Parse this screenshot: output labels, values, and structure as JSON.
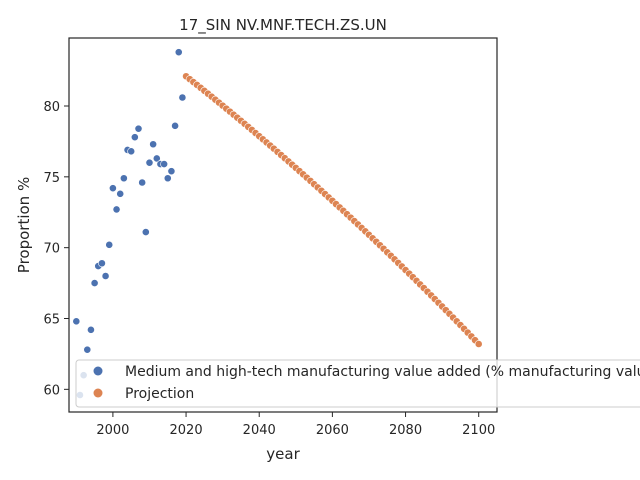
{
  "chart_data": {
    "type": "scatter",
    "title": "17_SIN NV.MNF.TECH.ZS.UN",
    "xlabel": "year",
    "ylabel": "Proportion %",
    "xlim": [
      1988,
      2105
    ],
    "ylim": [
      58.4,
      84.8
    ],
    "xticks": [
      "2000",
      "2020",
      "2040",
      "2060",
      "2080",
      "2100"
    ],
    "yticks": [
      "60",
      "65",
      "70",
      "75",
      "80"
    ],
    "grid": false,
    "legend_position": "lower-left",
    "colors": {
      "historical": "#4c72b0",
      "projection": "#dd8452"
    },
    "series": [
      {
        "name": "Medium and high-tech manufacturing value added (% manufacturing value added)",
        "x": [
          1990,
          1991,
          1992,
          1993,
          1994,
          1995,
          1996,
          1997,
          1998,
          1999,
          2000,
          2001,
          2002,
          2003,
          2004,
          2005,
          2006,
          2007,
          2008,
          2009,
          2010,
          2011,
          2012,
          2013,
          2014,
          2015,
          2016,
          2017,
          2018,
          2019,
          2020
        ],
        "y": [
          64.8,
          59.6,
          61.0,
          62.8,
          64.2,
          67.5,
          68.7,
          68.9,
          68.0,
          70.2,
          74.2,
          72.7,
          73.8,
          74.9,
          76.9,
          76.8,
          77.8,
          78.4,
          74.6,
          71.1,
          76.0,
          77.3,
          76.3,
          75.9,
          75.9,
          74.9,
          75.4,
          78.6,
          83.8,
          80.6,
          82.1
        ]
      },
      {
        "name": "Projection",
        "start_year": 2020,
        "end_year": 2100,
        "start_value": 82.1,
        "end_value": 63.2
      }
    ]
  }
}
